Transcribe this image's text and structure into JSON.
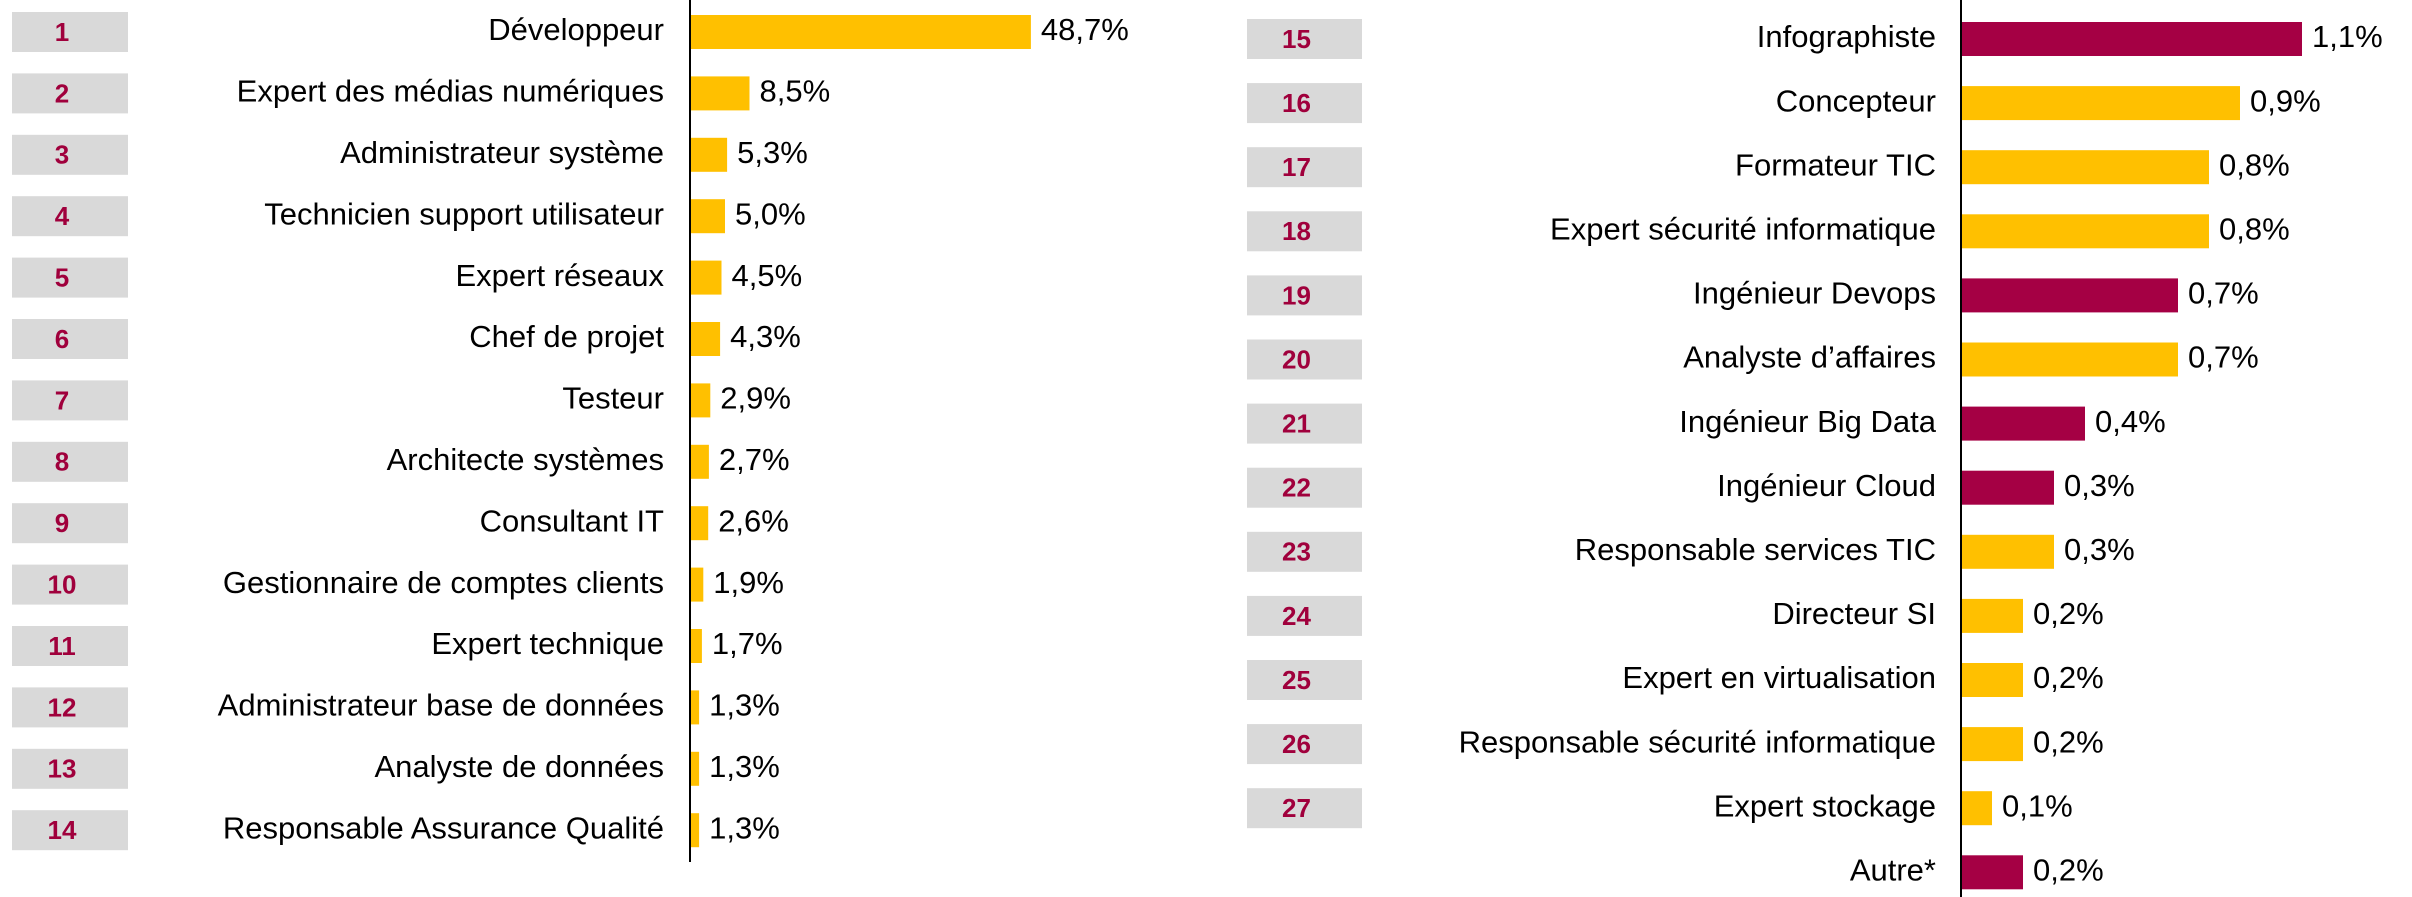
{
  "chart_data": [
    {
      "type": "bar",
      "ranks": [
        1,
        2,
        3,
        4,
        5,
        6,
        7,
        8,
        9,
        10,
        11,
        12,
        13,
        14
      ],
      "categories": [
        "Développeur",
        "Expert des médias numériques",
        "Administrateur système",
        "Technicien support utilisateur",
        "Expert réseaux",
        "Chef de projet",
        "Testeur",
        "Architecte systèmes",
        "Consultant IT",
        "Gestionnaire de comptes clients",
        "Expert technique",
        "Administrateur base de données",
        "Analyste de données",
        "Responsable Assurance Qualité"
      ],
      "values": [
        48.7,
        8.5,
        5.3,
        5.0,
        4.5,
        4.3,
        2.9,
        2.7,
        2.6,
        1.9,
        1.7,
        1.3,
        1.3,
        1.3
      ],
      "value_labels": [
        "48,7%",
        "8,5%",
        "5,3%",
        "5,0%",
        "4,5%",
        "4,3%",
        "2,9%",
        "2,7%",
        "2,6%",
        "1,9%",
        "1,7%",
        "1,3%",
        "1,3%",
        "1,3%"
      ],
      "colors": [
        "#ffc000",
        "#ffc000",
        "#ffc000",
        "#ffc000",
        "#ffc000",
        "#ffc000",
        "#ffc000",
        "#ffc000",
        "#ffc000",
        "#ffc000",
        "#ffc000",
        "#ffc000",
        "#ffc000",
        "#ffc000"
      ],
      "xlim": [
        0,
        50
      ]
    },
    {
      "type": "bar",
      "ranks": [
        15,
        16,
        17,
        18,
        19,
        20,
        21,
        22,
        23,
        24,
        25,
        26,
        27,
        null
      ],
      "categories": [
        "Infographiste",
        "Concepteur",
        "Formateur TIC",
        "Expert sécurité informatique",
        "Ingénieur Devops",
        "Analyste d’affaires",
        "Ingénieur Big Data",
        "Ingénieur Cloud",
        "Responsable services TIC",
        "Directeur SI",
        "Expert en virtualisation",
        "Responsable sécurité informatique",
        "Expert stockage",
        "Autre*"
      ],
      "values": [
        1.1,
        0.9,
        0.8,
        0.8,
        0.7,
        0.7,
        0.4,
        0.3,
        0.3,
        0.2,
        0.2,
        0.2,
        0.1,
        0.2
      ],
      "value_labels": [
        "1,1%",
        "0,9%",
        "0,8%",
        "0,8%",
        "0,7%",
        "0,7%",
        "0,4%",
        "0,3%",
        "0,3%",
        "0,2%",
        "0,2%",
        "0,2%",
        "0,1%",
        "0,2%"
      ],
      "colors": [
        "#a50044",
        "#ffc000",
        "#ffc000",
        "#ffc000",
        "#a50044",
        "#ffc000",
        "#a50044",
        "#a50044",
        "#ffc000",
        "#ffc000",
        "#ffc000",
        "#ffc000",
        "#ffc000",
        "#a50044"
      ],
      "xlim": [
        0,
        1.2
      ]
    }
  ]
}
